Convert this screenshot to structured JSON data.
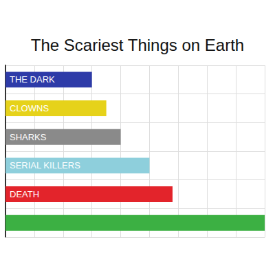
{
  "chart_data": {
    "type": "bar",
    "title": "The Scariest Things on Earth",
    "orientation": "horizontal",
    "categories": [
      "THE DARK",
      "CLOWNS",
      "SHARKS",
      "SERIAL KILLERS",
      "DEATH",
      null
    ],
    "values": [
      3,
      3.5,
      4,
      5,
      5.8,
      9
    ],
    "colors": [
      "#2e3ba8",
      "#e6d21a",
      "#8a8a8a",
      "#8ecfdc",
      "#e3242b",
      "#3cb043"
    ],
    "xlim": [
      0,
      9
    ],
    "xticks": [
      0,
      1,
      2,
      3,
      4,
      5,
      6,
      7,
      8,
      9
    ],
    "grid": true,
    "tick_labels": false
  }
}
